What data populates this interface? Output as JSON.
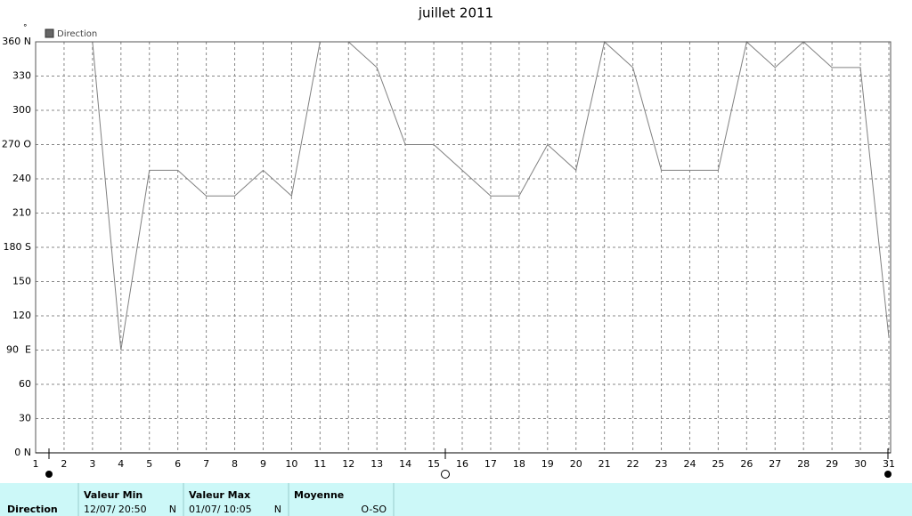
{
  "chart_data": {
    "type": "line",
    "title": "juillet 2011",
    "y_unit": "°",
    "x": [
      1,
      2,
      3,
      4,
      5,
      6,
      7,
      8,
      9,
      10,
      11,
      12,
      13,
      14,
      15,
      16,
      17,
      18,
      19,
      20,
      21,
      22,
      23,
      24,
      25,
      26,
      27,
      28,
      29,
      30,
      31
    ],
    "xlim": [
      1,
      31
    ],
    "series": [
      {
        "name": "Direction",
        "color": "#808080",
        "values": [
          360,
          360,
          360,
          90,
          247.5,
          247.5,
          225,
          225,
          247.5,
          225,
          360,
          360,
          337.5,
          270,
          270,
          247.5,
          225,
          225,
          270,
          247.5,
          360,
          337.5,
          247.5,
          247.5,
          247.5,
          360,
          337.5,
          360,
          337.5,
          337.5,
          101
        ]
      }
    ],
    "ylim": [
      0,
      360
    ],
    "yticks": [
      {
        "value": 0,
        "label": "0 N"
      },
      30,
      60,
      {
        "value": 90,
        "label": "90  E"
      },
      120,
      150,
      {
        "value": 180,
        "label": "180 S"
      },
      210,
      240,
      {
        "value": 270,
        "label": "270 O"
      },
      300,
      330,
      {
        "value": 360,
        "label": "360 N"
      }
    ],
    "grid": true
  },
  "summary": {
    "label": "Direction",
    "columns": [
      {
        "header": "Valeur Min",
        "date": "12/07/  20:50",
        "value": "N"
      },
      {
        "header": "Valeur Max",
        "date": "01/07/  10:05",
        "value": "N"
      },
      {
        "header": "Moyenne",
        "value": "O-SO"
      }
    ]
  }
}
